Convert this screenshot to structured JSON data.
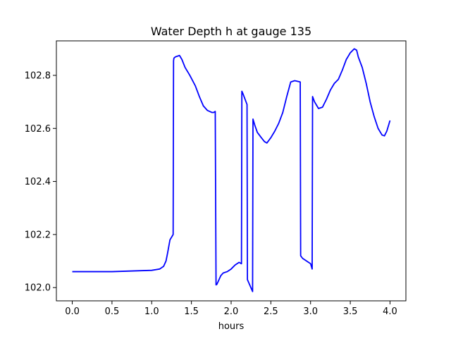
{
  "chart_data": {
    "type": "line",
    "title": "Water Depth h at gauge 135",
    "xlabel": "hours",
    "ylabel": "",
    "xlim": [
      -0.2,
      4.2
    ],
    "ylim": [
      101.95,
      102.93
    ],
    "xticks": [
      {
        "value": 0.0,
        "label": "0.0"
      },
      {
        "value": 0.5,
        "label": "0.5"
      },
      {
        "value": 1.0,
        "label": "1.0"
      },
      {
        "value": 1.5,
        "label": "1.5"
      },
      {
        "value": 2.0,
        "label": "2.0"
      },
      {
        "value": 2.5,
        "label": "2.5"
      },
      {
        "value": 3.0,
        "label": "3.0"
      },
      {
        "value": 3.5,
        "label": "3.5"
      },
      {
        "value": 4.0,
        "label": "4.0"
      }
    ],
    "yticks": [
      {
        "value": 102.0,
        "label": "102.0"
      },
      {
        "value": 102.2,
        "label": "102.2"
      },
      {
        "value": 102.4,
        "label": "102.4"
      },
      {
        "value": 102.6,
        "label": "102.6"
      },
      {
        "value": 102.8,
        "label": "102.8"
      }
    ],
    "grid": false,
    "series": [
      {
        "color": "#0000ff",
        "x": [
          0.0,
          0.5,
          1.0,
          1.1,
          1.15,
          1.18,
          1.2,
          1.23,
          1.27,
          1.275,
          1.28,
          1.3,
          1.35,
          1.38,
          1.42,
          1.48,
          1.55,
          1.6,
          1.65,
          1.7,
          1.76,
          1.78,
          1.8,
          1.81,
          1.82,
          1.84,
          1.87,
          1.9,
          1.95,
          2.0,
          2.05,
          2.1,
          2.13,
          2.135,
          2.15,
          2.2,
          2.205,
          2.27,
          2.275,
          2.3,
          2.33,
          2.38,
          2.42,
          2.45,
          2.5,
          2.55,
          2.6,
          2.65,
          2.7,
          2.75,
          2.8,
          2.83,
          2.87,
          2.875,
          2.9,
          3.0,
          3.02,
          3.025,
          3.05,
          3.1,
          3.15,
          3.2,
          3.25,
          3.3,
          3.35,
          3.4,
          3.45,
          3.5,
          3.55,
          3.58,
          3.6,
          3.65,
          3.7,
          3.75,
          3.8,
          3.85,
          3.9,
          3.93,
          3.96,
          4.0
        ],
        "y": [
          102.06,
          102.06,
          102.065,
          102.07,
          102.08,
          102.1,
          102.13,
          102.18,
          102.2,
          102.855,
          102.865,
          102.87,
          102.875,
          102.86,
          102.83,
          102.8,
          102.76,
          102.72,
          102.685,
          102.668,
          102.66,
          102.66,
          102.664,
          102.01,
          102.012,
          102.025,
          102.045,
          102.055,
          102.06,
          102.07,
          102.085,
          102.095,
          102.09,
          102.74,
          102.73,
          102.69,
          102.03,
          101.985,
          102.635,
          102.61,
          102.585,
          102.565,
          102.55,
          102.545,
          102.565,
          102.59,
          102.62,
          102.66,
          102.72,
          102.775,
          102.78,
          102.778,
          102.775,
          102.12,
          102.11,
          102.09,
          102.07,
          102.72,
          102.7,
          102.675,
          102.68,
          102.71,
          102.745,
          102.77,
          102.785,
          102.82,
          102.86,
          102.885,
          102.9,
          102.895,
          102.87,
          102.83,
          102.77,
          102.7,
          102.645,
          102.6,
          102.575,
          102.572,
          102.59,
          102.63
        ]
      }
    ]
  }
}
